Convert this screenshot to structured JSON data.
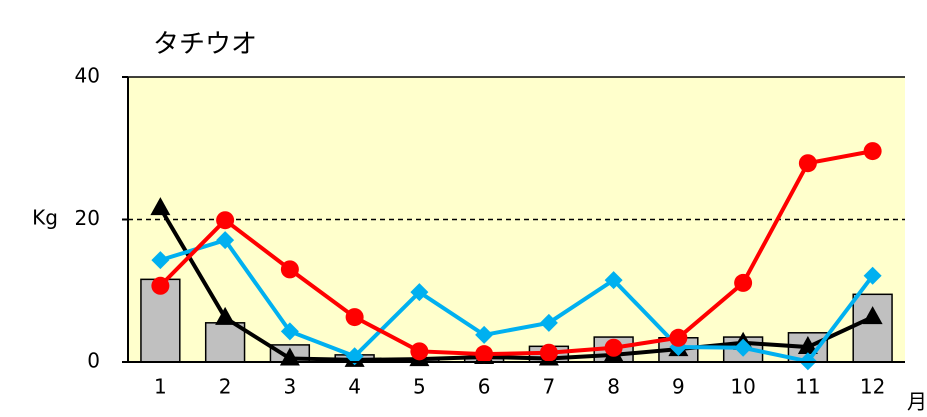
{
  "chart_data": {
    "type": "combo",
    "title": "タチウオ",
    "y_label": "Kg",
    "x_label": "月",
    "categories": [
      "1",
      "2",
      "3",
      "4",
      "5",
      "6",
      "7",
      "8",
      "9",
      "10",
      "11",
      "12"
    ],
    "ylim": [
      0,
      40
    ],
    "yticks": [
      0,
      20,
      40
    ],
    "grid": true,
    "plot_background": "#ffffcc",
    "series": [
      {
        "type": "bar",
        "color": "#c0c0c0",
        "values": [
          11.6,
          5.5,
          2.4,
          1.0,
          0.3,
          0.5,
          2.2,
          3.5,
          3.4,
          3.5,
          4.1,
          9.5
        ]
      },
      {
        "type": "line",
        "marker": "triangle",
        "color": "#000000",
        "values": [
          21.6,
          6.2,
          0.5,
          0.3,
          0.4,
          0.7,
          0.5,
          1.0,
          1.8,
          2.7,
          2.1,
          6.3
        ]
      },
      {
        "type": "line",
        "marker": "diamond",
        "color": "#00b0f0",
        "values": [
          14.3,
          17.1,
          4.3,
          0.8,
          9.8,
          3.8,
          5.5,
          11.5,
          2.1,
          2.0,
          0.1,
          12.1
        ]
      },
      {
        "type": "line",
        "marker": "circle",
        "color": "#ff0000",
        "values": [
          10.7,
          19.9,
          13.0,
          6.3,
          1.5,
          1.1,
          1.3,
          2.0,
          3.4,
          11.1,
          27.9,
          29.6
        ]
      }
    ]
  }
}
